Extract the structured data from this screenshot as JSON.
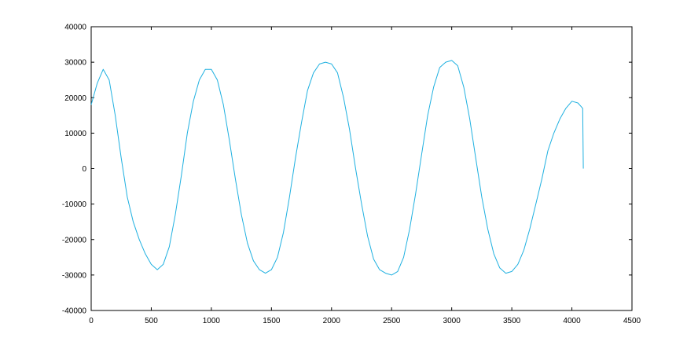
{
  "chart_data": {
    "type": "line",
    "title": "",
    "xlabel": "",
    "ylabel": "",
    "xlim": [
      0,
      4500
    ],
    "ylim": [
      -40000,
      40000
    ],
    "x_ticks": [
      0,
      500,
      1000,
      1500,
      2000,
      2500,
      3000,
      3500,
      4000,
      4500
    ],
    "x_tick_labels": [
      "0",
      "500",
      "1000",
      "1500",
      "2000",
      "2500",
      "3000",
      "3500",
      "4000",
      "4500"
    ],
    "y_ticks": [
      40000,
      30000,
      20000,
      10000,
      0,
      -10000,
      -20000,
      -30000,
      -40000
    ],
    "y_tick_labels": [
      "40000",
      "30000",
      "20000",
      "10000",
      "0",
      "-10000",
      "-20000",
      "-30000",
      "-40000"
    ],
    "grid": false,
    "legend": "none",
    "colors": {
      "line": "#1fb0e0",
      "axes": "#000000",
      "background": "#ffffff"
    },
    "series": [
      {
        "x": [
          0,
          50,
          100,
          150,
          200,
          250,
          300,
          350,
          400,
          450,
          500,
          550,
          600,
          650,
          700,
          750,
          800,
          850,
          900,
          950,
          1000,
          1050,
          1100,
          1150,
          1200,
          1250,
          1300,
          1350,
          1400,
          1450,
          1500,
          1550,
          1600,
          1650,
          1700,
          1750,
          1800,
          1850,
          1900,
          1950,
          2000,
          2050,
          2100,
          2150,
          2200,
          2250,
          2300,
          2350,
          2400,
          2450,
          2500,
          2550,
          2600,
          2650,
          2700,
          2750,
          2800,
          2850,
          2900,
          2950,
          3000,
          3050,
          3100,
          3150,
          3200,
          3250,
          3300,
          3350,
          3400,
          3450,
          3500,
          3550,
          3600,
          3650,
          3700,
          3750,
          3800,
          3850,
          3900,
          3950,
          4000,
          4050,
          4090,
          4095
        ],
        "y": [
          18000,
          24000,
          28000,
          25000,
          15000,
          3000,
          -8000,
          -15000,
          -20000,
          -24000,
          -27000,
          -28500,
          -27000,
          -22000,
          -13000,
          -2000,
          10000,
          19000,
          25000,
          28000,
          28000,
          25000,
          18000,
          8000,
          -3000,
          -13000,
          -21000,
          -26000,
          -28500,
          -29500,
          -28500,
          -25000,
          -18000,
          -8000,
          3000,
          13000,
          22000,
          27000,
          29500,
          30000,
          29500,
          27000,
          20000,
          11000,
          0,
          -10000,
          -19000,
          -25500,
          -28500,
          -29500,
          -30000,
          -29000,
          -25000,
          -17000,
          -7000,
          4000,
          15000,
          23000,
          28500,
          30000,
          30500,
          29000,
          23000,
          14000,
          3000,
          -8000,
          -17000,
          -24000,
          -28000,
          -29500,
          -29000,
          -27000,
          -23000,
          -17000,
          -10000,
          -3000,
          5000,
          10000,
          14000,
          17000,
          19000,
          18500,
          17000,
          0
        ]
      }
    ]
  }
}
